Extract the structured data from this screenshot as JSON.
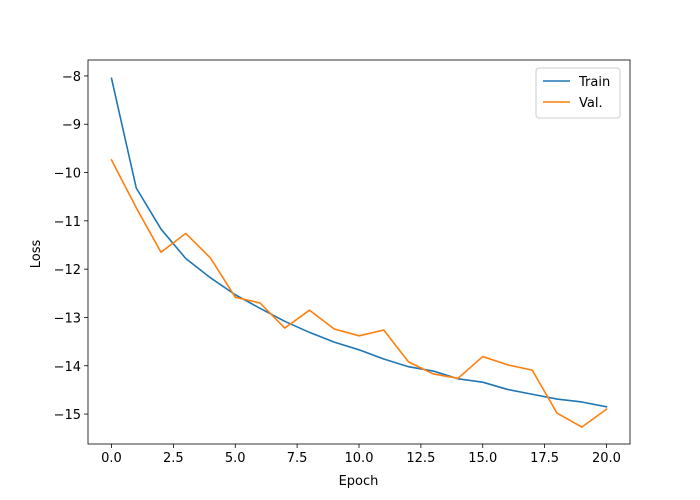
{
  "chart_data": {
    "type": "line",
    "title": "",
    "xlabel": "Epoch",
    "ylabel": "Loss",
    "xlim": [
      -0.95,
      20.95
    ],
    "ylim": [
      -15.62,
      -7.67
    ],
    "xticks": [
      0.0,
      2.5,
      5.0,
      7.5,
      10.0,
      12.5,
      15.0,
      17.5,
      20.0
    ],
    "xtick_labels": [
      "0.0",
      "2.5",
      "5.0",
      "7.5",
      "10.0",
      "12.5",
      "15.0",
      "17.5",
      "20.0"
    ],
    "yticks": [
      -8,
      -9,
      -10,
      -11,
      -12,
      -13,
      -14,
      -15
    ],
    "ytick_labels": [
      "−8",
      "−9",
      "−10",
      "−11",
      "−12",
      "−13",
      "−14",
      "−15"
    ],
    "grid": false,
    "legend_position": "top-right",
    "x": [
      0,
      1,
      2,
      3,
      4,
      5,
      6,
      7,
      8,
      9,
      10,
      11,
      12,
      13,
      14,
      15,
      16,
      17,
      18,
      19,
      20
    ],
    "series": [
      {
        "name": "Train",
        "color": "#1f77b4",
        "values": [
          -8.05,
          -10.32,
          -11.17,
          -11.78,
          -12.18,
          -12.53,
          -12.81,
          -13.08,
          -13.31,
          -13.51,
          -13.67,
          -13.86,
          -14.02,
          -14.11,
          -14.27,
          -14.34,
          -14.49,
          -14.59,
          -14.69,
          -14.75,
          -14.85
        ]
      },
      {
        "name": "Val.",
        "color": "#ff7f0e",
        "values": [
          -9.74,
          -10.73,
          -11.65,
          -11.26,
          -11.77,
          -12.58,
          -12.7,
          -13.22,
          -12.85,
          -13.24,
          -13.38,
          -13.26,
          -13.92,
          -14.17,
          -14.26,
          -13.81,
          -13.98,
          -14.09,
          -14.98,
          -15.27,
          -14.9
        ]
      }
    ]
  }
}
